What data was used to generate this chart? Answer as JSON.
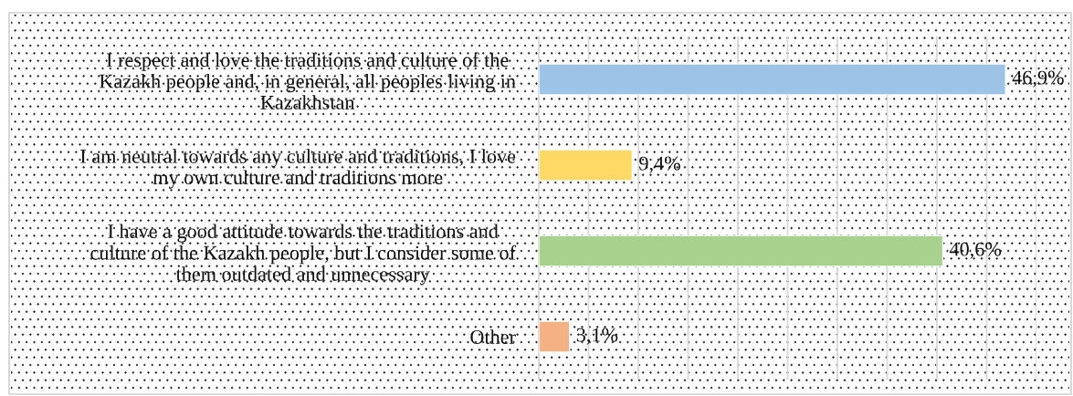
{
  "chart_data": {
    "type": "bar",
    "orientation": "horizontal",
    "categories": [
      "I respect and love the traditions and culture of the Kazakh people and, in general, all peoples living in Kazakhstan",
      "I am neutral towards any culture and traditions, I love my own culture and traditions more",
      "I have a good attitude towards the traditions and culture of the Kazakh people, but I consider some of them outdated and unnecessary",
      "Other"
    ],
    "values": [
      46.9,
      9.4,
      40.6,
      3.1
    ],
    "colors": [
      "#9dc3e6",
      "#ffd966",
      "#a9d18e",
      "#f4b183"
    ],
    "value_labels": [
      "46,9%",
      "9,4%",
      "40,6%",
      "3,1%"
    ],
    "xlim": [
      0,
      50
    ],
    "xticks": [
      {
        "value": 0,
        "label": null
      },
      {
        "value": 5,
        "label": null
      },
      {
        "value": 10,
        "label": null
      },
      {
        "value": 15,
        "label": null
      },
      {
        "value": 20,
        "label": null
      },
      {
        "value": 25,
        "label": null
      },
      {
        "value": 30,
        "label": null
      },
      {
        "value": 35,
        "label": null
      },
      {
        "value": 40,
        "label": null
      },
      {
        "value": 45,
        "label": null
      },
      {
        "value": 50,
        "label": null
      }
    ],
    "grid": "x",
    "tick_labels": "y"
  }
}
